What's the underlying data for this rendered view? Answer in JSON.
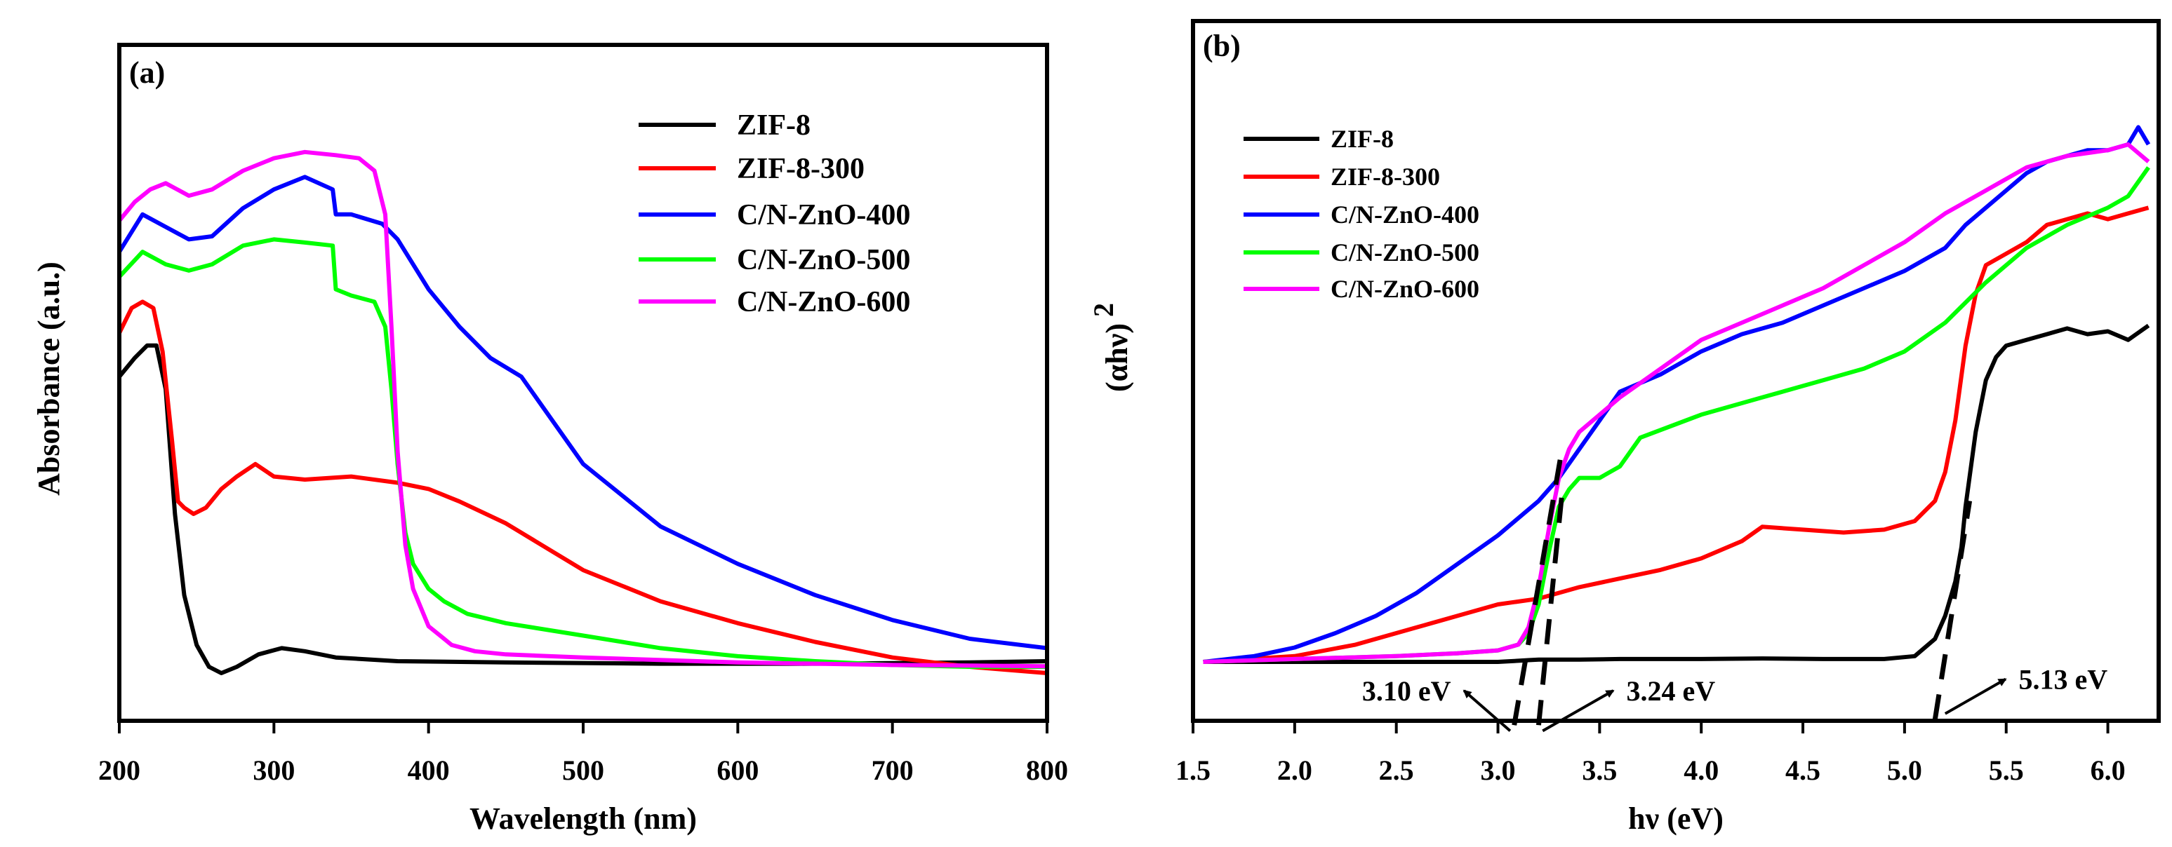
{
  "chart_data": [
    {
      "type": "line",
      "panel_label": "(a)",
      "xlabel": "Wavelength (nm)",
      "ylabel": "Absorbance (a.u.)",
      "xlim": [
        200,
        800
      ],
      "ylim": [
        0,
        1.0
      ],
      "xticks": [
        200,
        300,
        400,
        500,
        600,
        700,
        800
      ],
      "y_ticks_labeled": false,
      "legend_position": "top-right",
      "series": [
        {
          "name": "ZIF-8",
          "color": "#000000",
          "x": [
            200,
            210,
            218,
            224,
            230,
            236,
            242,
            250,
            258,
            266,
            276,
            290,
            305,
            320,
            340,
            380,
            450,
            550,
            650,
            750,
            800
          ],
          "y": [
            0.52,
            0.55,
            0.57,
            0.57,
            0.5,
            0.3,
            0.17,
            0.09,
            0.055,
            0.045,
            0.055,
            0.075,
            0.085,
            0.08,
            0.07,
            0.064,
            0.062,
            0.06,
            0.06,
            0.062,
            0.064
          ]
        },
        {
          "name": "ZIF-8-300",
          "color": "#ff0000",
          "x": [
            200,
            208,
            215,
            222,
            228,
            234,
            238,
            242,
            248,
            256,
            266,
            276,
            288,
            300,
            320,
            350,
            380,
            400,
            420,
            450,
            480,
            500,
            550,
            600,
            650,
            700,
            750,
            800
          ],
          "y": [
            0.59,
            0.63,
            0.64,
            0.63,
            0.56,
            0.42,
            0.32,
            0.31,
            0.3,
            0.31,
            0.34,
            0.36,
            0.38,
            0.36,
            0.355,
            0.36,
            0.35,
            0.34,
            0.32,
            0.285,
            0.24,
            0.21,
            0.16,
            0.125,
            0.095,
            0.07,
            0.055,
            0.045
          ]
        },
        {
          "name": "C/N-ZnO-400",
          "color": "#0000ff",
          "x": [
            200,
            215,
            230,
            245,
            260,
            280,
            300,
            320,
            338,
            340,
            350,
            370,
            380,
            400,
            420,
            440,
            460,
            480,
            500,
            550,
            600,
            650,
            700,
            750,
            800
          ],
          "y": [
            0.72,
            0.78,
            0.76,
            0.74,
            0.745,
            0.79,
            0.82,
            0.84,
            0.82,
            0.78,
            0.78,
            0.765,
            0.74,
            0.66,
            0.6,
            0.55,
            0.52,
            0.45,
            0.38,
            0.28,
            0.22,
            0.17,
            0.13,
            0.1,
            0.085
          ]
        },
        {
          "name": "C/N-ZnO-500",
          "color": "#00ff00",
          "x": [
            200,
            215,
            230,
            245,
            260,
            280,
            300,
            320,
            338,
            340,
            350,
            365,
            372,
            376,
            380,
            385,
            390,
            400,
            410,
            425,
            450,
            500,
            550,
            600,
            650,
            700,
            750,
            800
          ],
          "y": [
            0.68,
            0.72,
            0.7,
            0.69,
            0.7,
            0.73,
            0.74,
            0.735,
            0.73,
            0.66,
            0.65,
            0.64,
            0.6,
            0.5,
            0.38,
            0.27,
            0.22,
            0.18,
            0.16,
            0.14,
            0.125,
            0.105,
            0.085,
            0.072,
            0.064,
            0.058,
            0.055,
            0.055
          ]
        },
        {
          "name": "C/N-ZnO-600",
          "color": "#ff00ff",
          "x": [
            200,
            210,
            220,
            230,
            245,
            260,
            280,
            300,
            320,
            340,
            355,
            365,
            372,
            376,
            380,
            385,
            390,
            400,
            415,
            430,
            450,
            500,
            600,
            700,
            800
          ],
          "y": [
            0.77,
            0.8,
            0.82,
            0.83,
            0.81,
            0.82,
            0.85,
            0.87,
            0.88,
            0.875,
            0.87,
            0.85,
            0.78,
            0.6,
            0.4,
            0.25,
            0.18,
            0.12,
            0.09,
            0.08,
            0.075,
            0.07,
            0.062,
            0.058,
            0.056
          ]
        }
      ]
    },
    {
      "type": "line",
      "panel_label": "(b)",
      "xlabel": "hν (eV)",
      "ylabel": "(αhν)",
      "ylabel_superscript": "2",
      "xlim": [
        1.5,
        6.25
      ],
      "ylim": [
        0,
        1.0
      ],
      "xticks": [
        "1.5",
        "2.0",
        "2.5",
        "3.0",
        "3.5",
        "4.0",
        "4.5",
        "5.0",
        "5.5",
        "6.0"
      ],
      "y_ticks_labeled": false,
      "legend_position": "top-left",
      "series": [
        {
          "name": "ZIF-8",
          "color": "#000000",
          "x": [
            1.55,
            2.0,
            2.5,
            3.0,
            3.1,
            3.15,
            3.2,
            3.4,
            3.6,
            4.0,
            4.3,
            4.6,
            4.9,
            5.05,
            5.15,
            5.2,
            5.25,
            5.28,
            5.3,
            5.35,
            5.4,
            5.45,
            5.5,
            5.6,
            5.7,
            5.8,
            5.9,
            6.0,
            6.1,
            6.2
          ],
          "y": [
            0.0,
            0.0,
            0.0,
            0.0,
            0.002,
            0.003,
            0.004,
            0.004,
            0.005,
            0.005,
            0.006,
            0.005,
            0.005,
            0.01,
            0.04,
            0.08,
            0.14,
            0.2,
            0.27,
            0.4,
            0.49,
            0.53,
            0.55,
            0.56,
            0.57,
            0.58,
            0.57,
            0.575,
            0.56,
            0.585
          ]
        },
        {
          "name": "ZIF-8-300",
          "color": "#ff0000",
          "x": [
            1.55,
            2.0,
            2.3,
            2.6,
            2.8,
            3.0,
            3.2,
            3.4,
            3.6,
            3.8,
            4.0,
            4.2,
            4.3,
            4.5,
            4.7,
            4.9,
            5.05,
            5.15,
            5.2,
            5.25,
            5.3,
            5.35,
            5.4,
            5.5,
            5.6,
            5.7,
            5.8,
            5.9,
            6.0,
            6.1,
            6.2
          ],
          "y": [
            0.0,
            0.01,
            0.03,
            0.06,
            0.08,
            0.1,
            0.11,
            0.13,
            0.145,
            0.16,
            0.18,
            0.21,
            0.235,
            0.23,
            0.225,
            0.23,
            0.245,
            0.28,
            0.33,
            0.42,
            0.55,
            0.64,
            0.69,
            0.71,
            0.73,
            0.76,
            0.77,
            0.78,
            0.77,
            0.78,
            0.79
          ]
        },
        {
          "name": "C/N-ZnO-400",
          "color": "#0000ff",
          "x": [
            1.55,
            1.8,
            2.0,
            2.2,
            2.4,
            2.6,
            2.8,
            3.0,
            3.2,
            3.3,
            3.4,
            3.5,
            3.6,
            3.8,
            4.0,
            4.2,
            4.4,
            4.6,
            4.8,
            5.0,
            5.2,
            5.3,
            5.4,
            5.5,
            5.6,
            5.7,
            5.8,
            5.9,
            6.0,
            6.1,
            6.15,
            6.2
          ],
          "y": [
            0.0,
            0.01,
            0.025,
            0.05,
            0.08,
            0.12,
            0.17,
            0.22,
            0.28,
            0.32,
            0.37,
            0.42,
            0.47,
            0.5,
            0.54,
            0.57,
            0.59,
            0.62,
            0.65,
            0.68,
            0.72,
            0.76,
            0.79,
            0.82,
            0.85,
            0.87,
            0.88,
            0.89,
            0.89,
            0.9,
            0.93,
            0.9
          ]
        },
        {
          "name": "C/N-ZnO-500",
          "color": "#00ff00",
          "x": [
            1.55,
            2.0,
            2.5,
            2.8,
            3.0,
            3.1,
            3.15,
            3.2,
            3.25,
            3.3,
            3.35,
            3.4,
            3.5,
            3.6,
            3.7,
            4.0,
            4.3,
            4.6,
            4.8,
            5.0,
            5.2,
            5.4,
            5.6,
            5.8,
            6.0,
            6.1,
            6.2
          ],
          "y": [
            0.0,
            0.005,
            0.01,
            0.015,
            0.02,
            0.03,
            0.05,
            0.1,
            0.19,
            0.27,
            0.3,
            0.32,
            0.32,
            0.34,
            0.39,
            0.43,
            0.46,
            0.49,
            0.51,
            0.54,
            0.59,
            0.66,
            0.72,
            0.76,
            0.79,
            0.81,
            0.86
          ]
        },
        {
          "name": "C/N-ZnO-600",
          "color": "#ff00ff",
          "x": [
            1.55,
            2.0,
            2.5,
            2.8,
            3.0,
            3.1,
            3.15,
            3.2,
            3.25,
            3.3,
            3.35,
            3.4,
            3.5,
            3.6,
            3.8,
            4.0,
            4.2,
            4.4,
            4.6,
            4.8,
            5.0,
            5.2,
            5.4,
            5.6,
            5.8,
            6.0,
            6.1,
            6.2
          ],
          "y": [
            0.0,
            0.005,
            0.01,
            0.015,
            0.02,
            0.03,
            0.06,
            0.13,
            0.23,
            0.32,
            0.37,
            0.4,
            0.43,
            0.46,
            0.51,
            0.56,
            0.59,
            0.62,
            0.65,
            0.69,
            0.73,
            0.78,
            0.82,
            0.86,
            0.88,
            0.89,
            0.9,
            0.87
          ]
        }
      ],
      "tangent_lines": [
        {
          "x": [
            3.08,
            3.31
          ],
          "y": [
            -0.11,
            0.36
          ]
        },
        {
          "x": [
            3.2,
            3.32
          ],
          "y": [
            -0.11,
            0.31
          ]
        },
        {
          "x": [
            5.15,
            5.32
          ],
          "y": [
            -0.1,
            0.28
          ]
        }
      ],
      "annotations": [
        {
          "text": "3.10 eV",
          "x": 2.55,
          "y": -0.05,
          "arrow_to": [
            3.06,
            -0.12
          ]
        },
        {
          "text": "3.24 eV",
          "x": 3.85,
          "y": -0.05,
          "arrow_to": [
            3.22,
            -0.12
          ]
        },
        {
          "text": "5.13 eV",
          "x": 5.78,
          "y": -0.03,
          "arrow_to": [
            5.2,
            -0.09
          ]
        }
      ]
    }
  ]
}
